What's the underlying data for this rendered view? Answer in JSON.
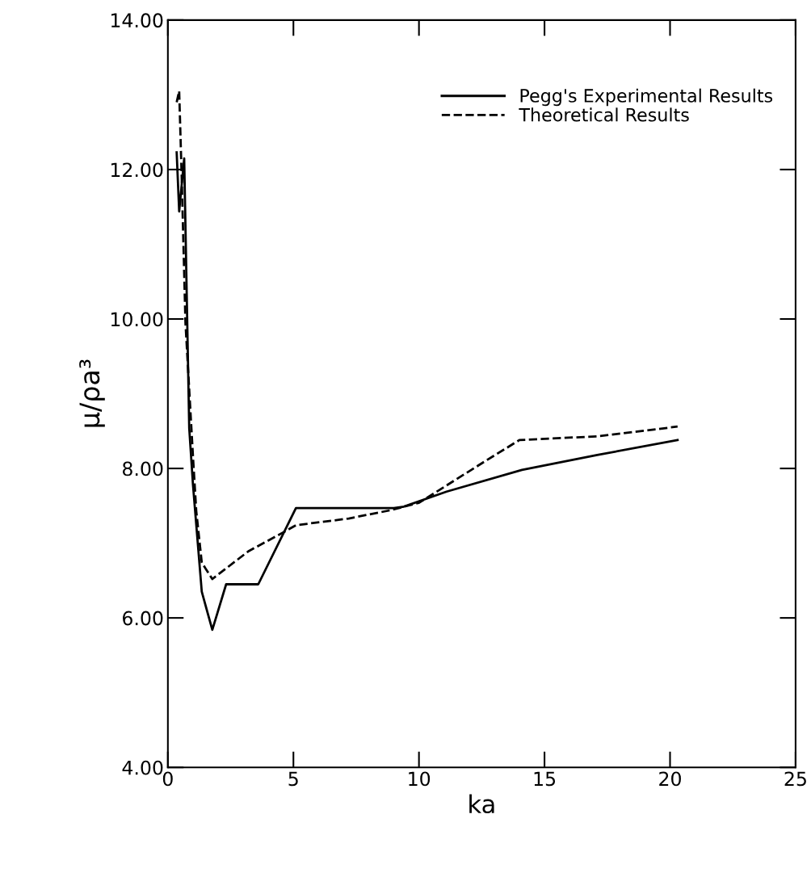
{
  "chart_data": {
    "type": "line",
    "xlabel": "ka",
    "ylabel": "μ/ρa³",
    "xlim": [
      0,
      25
    ],
    "ylim": [
      4,
      14
    ],
    "xticks": [
      0,
      5,
      10,
      15,
      20,
      25
    ],
    "yticks": [
      {
        "value": 4,
        "label": "4.00"
      },
      {
        "value": 6,
        "label": "6.00"
      },
      {
        "value": 8,
        "label": "8.00"
      },
      {
        "value": 10,
        "label": "10.00"
      },
      {
        "value": 12,
        "label": "12.00"
      },
      {
        "value": 14,
        "label": "14.00"
      }
    ],
    "grid": false,
    "legend": "top right",
    "marker": "none",
    "series": [
      {
        "name": "Pegg's Experimental Results",
        "color": "#000000",
        "line_style": "solid",
        "x": [
          0.35,
          0.45,
          0.65,
          0.85,
          1.0,
          1.35,
          1.77,
          2.32,
          3.6,
          5.1,
          9.0,
          9.4,
          11.1,
          14.1,
          17.1,
          20.3
        ],
        "values": [
          12.23,
          11.44,
          12.15,
          8.54,
          7.78,
          6.35,
          5.84,
          6.45,
          6.45,
          7.47,
          7.47,
          7.49,
          7.69,
          7.98,
          8.18,
          8.38
        ]
      },
      {
        "name": "Theoretical Results",
        "color": "#000000",
        "line_style": "dashed",
        "x": [
          0.35,
          0.45,
          0.55,
          0.7,
          1.0,
          1.13,
          1.35,
          1.77,
          3.2,
          4.57,
          5.1,
          7.2,
          8.85,
          10.0,
          12.6,
          14.0,
          17.1,
          20.3
        ],
        "values": [
          12.9,
          13.05,
          11.9,
          9.95,
          8.16,
          7.43,
          6.74,
          6.52,
          6.89,
          7.14,
          7.24,
          7.33,
          7.44,
          7.54,
          8.09,
          8.38,
          8.43,
          8.56
        ]
      }
    ]
  }
}
